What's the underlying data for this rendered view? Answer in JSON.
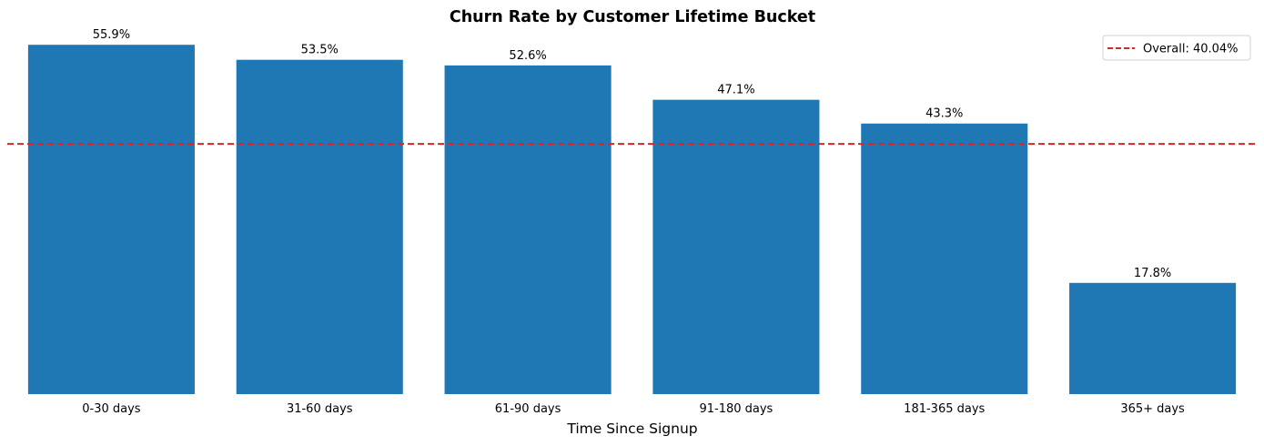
{
  "chart_data": {
    "type": "bar",
    "title": "Churn Rate by Customer Lifetime Bucket",
    "xlabel": "Time Since Signup",
    "ylabel": "",
    "categories": [
      "0-30 days",
      "31-60 days",
      "61-90 days",
      "91-180 days",
      "181-365 days",
      "365+ days"
    ],
    "values": [
      55.9,
      53.5,
      52.6,
      47.1,
      43.3,
      17.8
    ],
    "data_labels": [
      "55.9%",
      "53.5%",
      "52.6%",
      "47.1%",
      "43.3%",
      "17.8%"
    ],
    "ylim": [
      0,
      58.7
    ],
    "bar_color": "#1f77b4",
    "reference_line": {
      "value": 40.04,
      "label": "Overall: 40.04%",
      "color": "#d62728",
      "style": "dashed"
    },
    "legend_position": "top-right",
    "grid": false
  }
}
